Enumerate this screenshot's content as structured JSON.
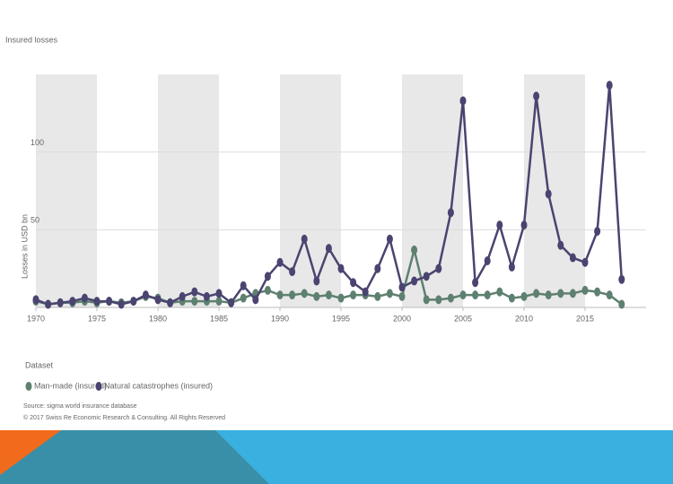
{
  "chart_data": {
    "type": "line",
    "title": "Insured losses",
    "y_label": "Losses in USD bn",
    "legend_title": "Dataset",
    "source": "Source: sigma world insurance database",
    "copyright": "© 2017 Swiss Re Economic Research & Consulting. All Rights Reserved",
    "x": [
      1970,
      1971,
      1972,
      1973,
      1974,
      1975,
      1976,
      1977,
      1978,
      1979,
      1980,
      1981,
      1982,
      1983,
      1984,
      1985,
      1986,
      1987,
      1988,
      1989,
      1990,
      1991,
      1992,
      1993,
      1994,
      1995,
      1996,
      1997,
      1998,
      1999,
      2000,
      2001,
      2002,
      2003,
      2004,
      2005,
      2006,
      2007,
      2008,
      2009,
      2010,
      2011,
      2012,
      2013,
      2014,
      2015,
      2016,
      2017,
      2018
    ],
    "series": [
      {
        "name": "Man-made (insured)",
        "color": "#5e8070",
        "values": [
          4,
          2,
          3,
          3,
          4,
          3,
          4,
          3,
          4,
          7,
          6,
          3,
          4,
          4,
          4,
          4,
          3,
          6,
          9,
          11,
          8,
          8,
          9,
          7,
          8,
          6,
          8,
          8,
          7,
          9,
          7,
          37,
          5,
          5,
          6,
          8,
          8,
          8,
          10,
          6,
          7,
          9,
          8,
          9,
          9,
          11,
          10,
          8,
          2
        ]
      },
      {
        "name": "Natural catastrophes (insured)",
        "color": "#4a4470",
        "values": [
          5,
          2,
          3,
          4,
          6,
          4,
          4,
          2,
          4,
          8,
          5,
          3,
          7,
          10,
          7,
          9,
          3,
          14,
          5,
          20,
          29,
          23,
          44,
          17,
          38,
          25,
          16,
          10,
          25,
          44,
          13,
          17,
          20,
          25,
          61,
          133,
          16,
          30,
          53,
          26,
          53,
          136,
          73,
          40,
          32,
          29,
          49,
          143,
          18
        ]
      }
    ],
    "xlim": [
      1970,
      2020
    ],
    "xticks": [
      1970,
      1975,
      1980,
      1985,
      1990,
      1995,
      2000,
      2005,
      2010,
      2015
    ],
    "ylim": [
      0,
      150
    ],
    "yticks": [
      50,
      100
    ],
    "grid": true,
    "alternate_bands": true
  }
}
